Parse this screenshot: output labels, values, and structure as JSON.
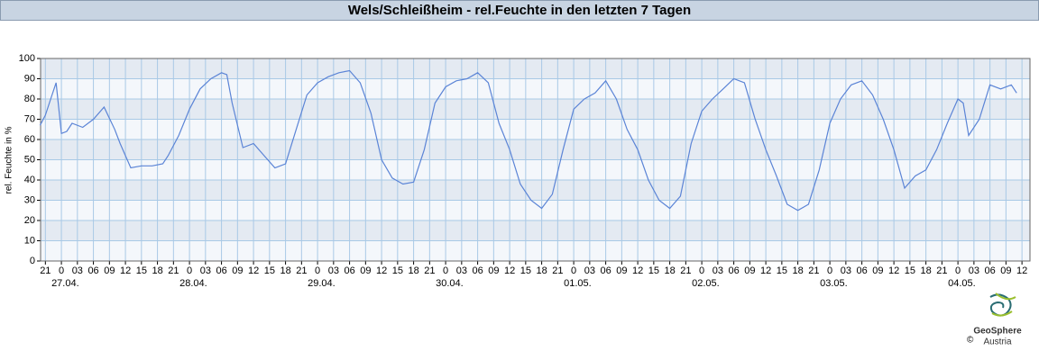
{
  "chart_data": {
    "type": "line",
    "title": "Wels/Schleißheim - rel.Feuchte in den letzten 7 Tagen",
    "ylabel": "rel. Feuchte in %",
    "color": "#5b84d6",
    "x": [
      -4,
      -3,
      -2,
      -1,
      0,
      1,
      2,
      4,
      6,
      8,
      10,
      11,
      12,
      13,
      15,
      17,
      19,
      20,
      22,
      24,
      26,
      28,
      30,
      31,
      32,
      34,
      36,
      38,
      40,
      42,
      44,
      46,
      48,
      50,
      52,
      54,
      56,
      58,
      60,
      62,
      64,
      66,
      68,
      70,
      72,
      74,
      76,
      78,
      80,
      82,
      84,
      86,
      88,
      90,
      92,
      94,
      96,
      98,
      100,
      102,
      104,
      106,
      108,
      110,
      112,
      114,
      116,
      118,
      120,
      122,
      124,
      126,
      128,
      130,
      132,
      134,
      136,
      138,
      140,
      142,
      144,
      146,
      148,
      150,
      152,
      154,
      156,
      158,
      160,
      162,
      164,
      166,
      168,
      169,
      170,
      172,
      174,
      176,
      178,
      179
    ],
    "values": [
      67,
      72,
      80,
      88,
      63,
      64,
      68,
      66,
      70,
      76,
      65,
      58,
      52,
      46,
      47,
      47,
      48,
      52,
      62,
      75,
      85,
      90,
      93,
      92,
      78,
      56,
      58,
      52,
      46,
      48,
      65,
      82,
      88,
      91,
      93,
      94,
      88,
      73,
      50,
      41,
      38,
      39,
      55,
      78,
      86,
      89,
      90,
      93,
      88,
      68,
      55,
      38,
      30,
      26,
      33,
      55,
      75,
      80,
      83,
      89,
      80,
      65,
      55,
      40,
      30,
      26,
      32,
      58,
      74,
      80,
      85,
      90,
      88,
      70,
      55,
      42,
      28,
      25,
      28,
      45,
      68,
      80,
      87,
      89,
      82,
      70,
      55,
      36,
      42,
      45,
      55,
      68,
      80,
      78,
      62,
      70,
      87,
      85,
      87,
      83
    ],
    "xlim": [
      -3.9,
      181.5
    ],
    "xticks": [
      {
        "value": -3,
        "label": "21"
      },
      0,
      {
        "value": 3,
        "label": "03"
      },
      {
        "value": 6,
        "label": "06"
      },
      {
        "value": 9,
        "label": "09"
      },
      {
        "value": 12,
        "label": "12"
      },
      {
        "value": 15,
        "label": "15"
      },
      {
        "value": 18,
        "label": "18"
      },
      {
        "value": 21,
        "label": "21"
      },
      {
        "value": 24,
        "label": "0"
      },
      {
        "value": 27,
        "label": "03"
      },
      {
        "value": 30,
        "label": "06"
      },
      {
        "value": 33,
        "label": "09"
      },
      {
        "value": 36,
        "label": "12"
      },
      {
        "value": 39,
        "label": "15"
      },
      {
        "value": 42,
        "label": "18"
      },
      {
        "value": 45,
        "label": "21"
      },
      {
        "value": 48,
        "label": "0"
      },
      {
        "value": 51,
        "label": "03"
      },
      {
        "value": 54,
        "label": "06"
      },
      {
        "value": 57,
        "label": "09"
      },
      {
        "value": 60,
        "label": "12"
      },
      {
        "value": 63,
        "label": "15"
      },
      {
        "value": 66,
        "label": "18"
      },
      {
        "value": 69,
        "label": "21"
      },
      {
        "value": 72,
        "label": "0"
      },
      {
        "value": 75,
        "label": "03"
      },
      {
        "value": 78,
        "label": "06"
      },
      {
        "value": 81,
        "label": "09"
      },
      {
        "value": 84,
        "label": "12"
      },
      {
        "value": 87,
        "label": "15"
      },
      {
        "value": 90,
        "label": "18"
      },
      {
        "value": 93,
        "label": "21"
      },
      {
        "value": 96,
        "label": "0"
      },
      {
        "value": 99,
        "label": "03"
      },
      {
        "value": 102,
        "label": "06"
      },
      {
        "value": 105,
        "label": "09"
      },
      {
        "value": 108,
        "label": "12"
      },
      {
        "value": 111,
        "label": "15"
      },
      {
        "value": 114,
        "label": "18"
      },
      {
        "value": 117,
        "label": "21"
      },
      {
        "value": 120,
        "label": "0"
      },
      {
        "value": 123,
        "label": "03"
      },
      {
        "value": 126,
        "label": "06"
      },
      {
        "value": 129,
        "label": "09"
      },
      {
        "value": 132,
        "label": "12"
      },
      {
        "value": 135,
        "label": "15"
      },
      {
        "value": 138,
        "label": "18"
      },
      {
        "value": 141,
        "label": "21"
      },
      {
        "value": 144,
        "label": "0"
      },
      {
        "value": 147,
        "label": "03"
      },
      {
        "value": 150,
        "label": "06"
      },
      {
        "value": 153,
        "label": "09"
      },
      {
        "value": 156,
        "label": "12"
      },
      {
        "value": 159,
        "label": "15"
      },
      {
        "value": 162,
        "label": "18"
      },
      {
        "value": 165,
        "label": "21"
      },
      {
        "value": 168,
        "label": "0"
      },
      {
        "value": 171,
        "label": "03"
      },
      {
        "value": 174,
        "label": "06"
      },
      {
        "value": 177,
        "label": "09"
      },
      {
        "value": 180,
        "label": "12"
      }
    ],
    "date_labels": [
      {
        "value": 0,
        "label": "27.04."
      },
      {
        "value": 24,
        "label": "28.04."
      },
      {
        "value": 48,
        "label": "29.04."
      },
      {
        "value": 72,
        "label": "30.04."
      },
      {
        "value": 96,
        "label": "01.05."
      },
      {
        "value": 120,
        "label": "02.05."
      },
      {
        "value": 144,
        "label": "03.05."
      },
      {
        "value": 168,
        "label": "04.05."
      }
    ],
    "ylim": [
      0,
      100
    ],
    "yticks": [
      0,
      10,
      20,
      30,
      40,
      50,
      60,
      70,
      80,
      90,
      100
    ],
    "grid": true
  },
  "logo": {
    "name": "GeoSphere",
    "sub": "Austria",
    "copyright": "©"
  }
}
